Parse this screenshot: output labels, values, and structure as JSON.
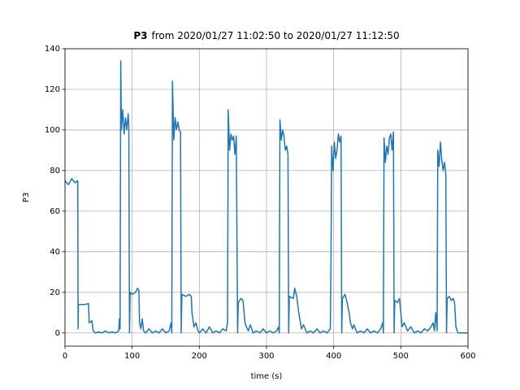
{
  "chart_data": {
    "type": "line",
    "title_bold": "P3",
    "title": "from 2020/01/27 11:02:50 to 2020/01/27 11:12:50",
    "xlabel": "time (s)",
    "ylabel": "P3",
    "xlim": [
      0,
      600
    ],
    "ylim": [
      -6.5,
      140
    ],
    "xticks": [
      0,
      100,
      200,
      300,
      400,
      500,
      600
    ],
    "yticks": [
      0,
      20,
      40,
      60,
      80,
      100,
      120,
      140
    ],
    "grid": true,
    "series": [
      {
        "name": "P3",
        "color": "#1f77b4",
        "x": [
          0,
          5,
          10,
          15,
          19,
          19.5,
          20,
          25,
          30,
          35,
          36,
          40,
          42,
          45,
          50,
          55,
          60,
          65,
          70,
          75,
          80,
          81,
          82,
          83,
          84,
          86,
          88,
          90,
          92,
          94,
          95,
          96,
          97,
          100,
          105,
          108,
          110,
          111,
          113,
          115,
          117,
          120,
          125,
          130,
          135,
          140,
          145,
          150,
          155,
          158,
          159,
          160,
          162,
          164,
          166,
          168,
          170,
          172,
          173,
          174,
          180,
          185,
          188,
          189,
          190,
          192,
          195,
          198,
          200,
          205,
          210,
          215,
          220,
          225,
          230,
          235,
          240,
          242,
          243,
          245,
          247,
          249,
          251,
          253,
          255,
          257,
          258,
          262,
          265,
          268,
          270,
          273,
          276,
          280,
          285,
          290,
          295,
          300,
          305,
          310,
          315,
          318,
          319,
          320,
          322,
          324,
          326,
          328,
          330,
          332,
          333,
          334,
          340,
          342,
          345,
          348,
          350,
          352,
          355,
          360,
          365,
          370,
          375,
          380,
          385,
          390,
          395,
          396,
          397,
          399,
          401,
          403,
          405,
          407,
          409,
          411,
          412,
          413,
          417,
          420,
          423,
          425,
          428,
          430,
          435,
          440,
          445,
          450,
          455,
          460,
          465,
          470,
          473,
          474,
          475,
          477,
          479,
          481,
          483,
          485,
          487,
          489,
          490,
          491,
          495,
          498,
          500,
          502,
          505,
          510,
          515,
          520,
          525,
          530,
          535,
          540,
          545,
          548,
          550,
          552,
          554,
          555,
          557,
          559,
          561,
          563,
          565,
          567,
          568,
          569,
          572,
          575,
          578,
          580,
          582,
          585,
          590,
          595,
          600
        ],
        "values": [
          75,
          73,
          76,
          74,
          75,
          2,
          14,
          14,
          14,
          14.5,
          5,
          6,
          1,
          0,
          0.5,
          0,
          1,
          0,
          0.5,
          0,
          1,
          7,
          2,
          134,
          100,
          110,
          98,
          106,
          100,
          108,
          102,
          0,
          20,
          19,
          20,
          22,
          21,
          5,
          2,
          7,
          1,
          0,
          2,
          0,
          1,
          0,
          2,
          0,
          1,
          5,
          0,
          124,
          95,
          106,
          100,
          104,
          100,
          99,
          0,
          19,
          18,
          19,
          18,
          10,
          8,
          3,
          5,
          1,
          0,
          2,
          0,
          3,
          0,
          1,
          0,
          2,
          1,
          5,
          110,
          90,
          98,
          95,
          97,
          88,
          97,
          0,
          15,
          17,
          16,
          5,
          3,
          1,
          4,
          0,
          1,
          0,
          2,
          0,
          1,
          0,
          1,
          3,
          0,
          105,
          95,
          100,
          97,
          90,
          92,
          88,
          0,
          18,
          17,
          22,
          18,
          10,
          6,
          2,
          4,
          0,
          1,
          0,
          2,
          0,
          1,
          0,
          2,
          34,
          92,
          80,
          94,
          86,
          90,
          98,
          94,
          97,
          0,
          17,
          19,
          15,
          10,
          5,
          2,
          4,
          0,
          1,
          0,
          2,
          0,
          1,
          0,
          2,
          5,
          0,
          96,
          84,
          92,
          88,
          96,
          98,
          90,
          99,
          0,
          16,
          15,
          17,
          10,
          3,
          5,
          1,
          3,
          0,
          1,
          0,
          2,
          1,
          3,
          5,
          1,
          10,
          1,
          90,
          82,
          94,
          85,
          80,
          84,
          78,
          0,
          17,
          18,
          16,
          17,
          15,
          3,
          0,
          0,
          0,
          0
        ]
      }
    ]
  }
}
